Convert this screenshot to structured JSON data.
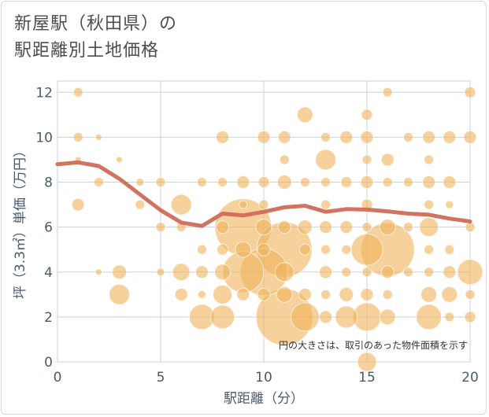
{
  "title_line1": "新屋駅（秋田県）の",
  "title_line2": "駅距離別土地価格",
  "chart_data": {
    "type": "scatter",
    "title": "新屋駅（秋田県）の駅距離別土地価格",
    "xlabel": "駅距離（分）",
    "ylabel": "坪（3.3㎡）単価（万円）",
    "xlim": [
      0,
      20
    ],
    "ylim": [
      0,
      12.5
    ],
    "xticks": [
      0,
      5,
      10,
      15,
      20
    ],
    "yticks": [
      0,
      2,
      4,
      6,
      8,
      10,
      12
    ],
    "annotation": "円の大きさは、取引のあった物件面積を示す",
    "points": [
      {
        "x": 1,
        "y": 12,
        "s": 6
      },
      {
        "x": 1,
        "y": 10,
        "s": 6
      },
      {
        "x": 1,
        "y": 9,
        "s": 4
      },
      {
        "x": 1,
        "y": 7,
        "s": 8
      },
      {
        "x": 2,
        "y": 10,
        "s": 4
      },
      {
        "x": 2,
        "y": 8,
        "s": 6
      },
      {
        "x": 2,
        "y": 4,
        "s": 4
      },
      {
        "x": 3,
        "y": 9,
        "s": 4
      },
      {
        "x": 3,
        "y": 4,
        "s": 9
      },
      {
        "x": 3,
        "y": 3,
        "s": 13
      },
      {
        "x": 4,
        "y": 8,
        "s": 5
      },
      {
        "x": 4,
        "y": 7,
        "s": 6
      },
      {
        "x": 5,
        "y": 8,
        "s": 6
      },
      {
        "x": 5,
        "y": 6,
        "s": 6
      },
      {
        "x": 5,
        "y": 4,
        "s": 5
      },
      {
        "x": 6,
        "y": 7,
        "s": 13
      },
      {
        "x": 6,
        "y": 6,
        "s": 6
      },
      {
        "x": 6,
        "y": 4,
        "s": 11
      },
      {
        "x": 6,
        "y": 3,
        "s": 8
      },
      {
        "x": 7,
        "y": 8,
        "s": 6
      },
      {
        "x": 7,
        "y": 5,
        "s": 6
      },
      {
        "x": 7,
        "y": 4,
        "s": 8
      },
      {
        "x": 7,
        "y": 3,
        "s": 5
      },
      {
        "x": 7,
        "y": 2,
        "s": 16
      },
      {
        "x": 8,
        "y": 10,
        "s": 8
      },
      {
        "x": 8,
        "y": 8,
        "s": 6
      },
      {
        "x": 8,
        "y": 6,
        "s": 8
      },
      {
        "x": 8,
        "y": 5,
        "s": 7
      },
      {
        "x": 8,
        "y": 4,
        "s": 10
      },
      {
        "x": 8,
        "y": 3,
        "s": 12
      },
      {
        "x": 8,
        "y": 2,
        "s": 15
      },
      {
        "x": 9,
        "y": 8,
        "s": 8
      },
      {
        "x": 9,
        "y": 7,
        "s": 5
      },
      {
        "x": 9,
        "y": 6,
        "s": 36
      },
      {
        "x": 9,
        "y": 5,
        "s": 10
      },
      {
        "x": 9,
        "y": 4,
        "s": 26
      },
      {
        "x": 9,
        "y": 3,
        "s": 8
      },
      {
        "x": 10,
        "y": 10,
        "s": 8
      },
      {
        "x": 10,
        "y": 8,
        "s": 7
      },
      {
        "x": 10,
        "y": 7,
        "s": 6
      },
      {
        "x": 10,
        "y": 6,
        "s": 10
      },
      {
        "x": 10,
        "y": 5,
        "s": 8
      },
      {
        "x": 10,
        "y": 4,
        "s": 30
      },
      {
        "x": 10,
        "y": 3,
        "s": 8
      },
      {
        "x": 11,
        "y": 10,
        "s": 8
      },
      {
        "x": 11,
        "y": 9,
        "s": 6
      },
      {
        "x": 11,
        "y": 8,
        "s": 9
      },
      {
        "x": 11,
        "y": 6,
        "s": 8
      },
      {
        "x": 11,
        "y": 5,
        "s": 35
      },
      {
        "x": 11,
        "y": 4,
        "s": 12
      },
      {
        "x": 11,
        "y": 3,
        "s": 10
      },
      {
        "x": 11,
        "y": 2,
        "s": 36
      },
      {
        "x": 12,
        "y": 11,
        "s": 10
      },
      {
        "x": 12,
        "y": 8,
        "s": 6
      },
      {
        "x": 12,
        "y": 6,
        "s": 9
      },
      {
        "x": 12,
        "y": 5,
        "s": 7
      },
      {
        "x": 12,
        "y": 3,
        "s": 8
      },
      {
        "x": 12,
        "y": 2,
        "s": 18
      },
      {
        "x": 13,
        "y": 10,
        "s": 6
      },
      {
        "x": 13,
        "y": 9,
        "s": 13
      },
      {
        "x": 13,
        "y": 8,
        "s": 6
      },
      {
        "x": 13,
        "y": 7,
        "s": 6
      },
      {
        "x": 13,
        "y": 6,
        "s": 8
      },
      {
        "x": 13,
        "y": 5,
        "s": 6
      },
      {
        "x": 13,
        "y": 4,
        "s": 8
      },
      {
        "x": 13,
        "y": 3,
        "s": 6
      },
      {
        "x": 13,
        "y": 2,
        "s": 8
      },
      {
        "x": 14,
        "y": 10,
        "s": 8
      },
      {
        "x": 14,
        "y": 8,
        "s": 7
      },
      {
        "x": 14,
        "y": 6,
        "s": 8
      },
      {
        "x": 14,
        "y": 5,
        "s": 6
      },
      {
        "x": 14,
        "y": 4,
        "s": 6
      },
      {
        "x": 14,
        "y": 3,
        "s": 9
      },
      {
        "x": 14,
        "y": 2,
        "s": 14
      },
      {
        "x": 15,
        "y": 11,
        "s": 7
      },
      {
        "x": 15,
        "y": 10,
        "s": 8
      },
      {
        "x": 15,
        "y": 9,
        "s": 6
      },
      {
        "x": 15,
        "y": 8,
        "s": 8
      },
      {
        "x": 15,
        "y": 7,
        "s": 7
      },
      {
        "x": 15,
        "y": 6,
        "s": 6
      },
      {
        "x": 15,
        "y": 5,
        "s": 20
      },
      {
        "x": 15,
        "y": 4,
        "s": 6
      },
      {
        "x": 15,
        "y": 3,
        "s": 8
      },
      {
        "x": 15,
        "y": 2,
        "s": 18
      },
      {
        "x": 15,
        "y": 0,
        "s": 12
      },
      {
        "x": 16,
        "y": 12,
        "s": 6
      },
      {
        "x": 16,
        "y": 9,
        "s": 8
      },
      {
        "x": 16,
        "y": 8,
        "s": 6
      },
      {
        "x": 16,
        "y": 6,
        "s": 10
      },
      {
        "x": 16,
        "y": 5,
        "s": 34
      },
      {
        "x": 16,
        "y": 4,
        "s": 8
      },
      {
        "x": 16,
        "y": 3,
        "s": 6
      },
      {
        "x": 16,
        "y": 2,
        "s": 10
      },
      {
        "x": 17,
        "y": 10,
        "s": 6
      },
      {
        "x": 17,
        "y": 8,
        "s": 6
      },
      {
        "x": 17,
        "y": 6,
        "s": 6
      },
      {
        "x": 17,
        "y": 4,
        "s": 6
      },
      {
        "x": 18,
        "y": 10,
        "s": 8
      },
      {
        "x": 18,
        "y": 9,
        "s": 6
      },
      {
        "x": 18,
        "y": 8,
        "s": 8
      },
      {
        "x": 18,
        "y": 7,
        "s": 6
      },
      {
        "x": 18,
        "y": 6,
        "s": 12
      },
      {
        "x": 18,
        "y": 5,
        "s": 6
      },
      {
        "x": 18,
        "y": 4,
        "s": 6
      },
      {
        "x": 18,
        "y": 3,
        "s": 10
      },
      {
        "x": 18,
        "y": 2,
        "s": 16
      },
      {
        "x": 19,
        "y": 10,
        "s": 8
      },
      {
        "x": 19,
        "y": 8,
        "s": 8
      },
      {
        "x": 19,
        "y": 7,
        "s": 5
      },
      {
        "x": 19,
        "y": 5,
        "s": 6
      },
      {
        "x": 19,
        "y": 4,
        "s": 8
      },
      {
        "x": 19,
        "y": 3,
        "s": 10
      },
      {
        "x": 19,
        "y": 2,
        "s": 6
      },
      {
        "x": 20,
        "y": 12,
        "s": 7
      },
      {
        "x": 20,
        "y": 10,
        "s": 8
      },
      {
        "x": 20,
        "y": 6,
        "s": 6
      },
      {
        "x": 20,
        "y": 4,
        "s": 16
      },
      {
        "x": 20,
        "y": 3,
        "s": 6
      },
      {
        "x": 20,
        "y": 2,
        "s": 7
      }
    ],
    "trend": {
      "x": [
        0,
        1,
        2,
        3,
        4,
        5,
        6,
        7,
        8,
        9,
        10,
        11,
        12,
        13,
        14,
        15,
        16,
        17,
        18,
        19,
        20
      ],
      "y": [
        8.8,
        8.88,
        8.72,
        8.15,
        7.45,
        6.75,
        6.2,
        6.05,
        6.6,
        6.52,
        6.68,
        6.88,
        6.95,
        6.68,
        6.8,
        6.78,
        6.7,
        6.6,
        6.55,
        6.38,
        6.25
      ]
    },
    "colors": {
      "bubble": "#f0b25a",
      "trend": "#d06a57",
      "grid": "#c8d3dc"
    }
  }
}
